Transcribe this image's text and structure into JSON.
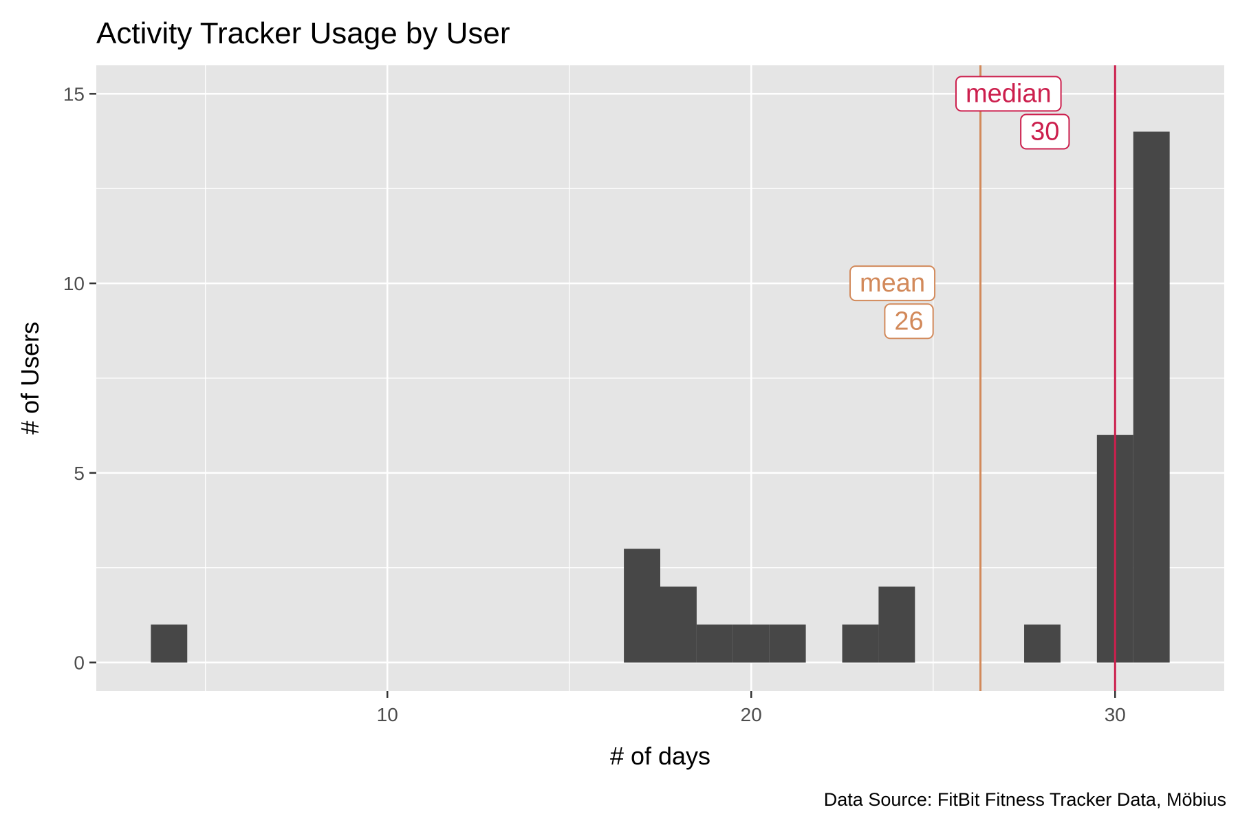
{
  "chart_data": {
    "type": "bar",
    "chart_kind": "histogram",
    "title": "Activity Tracker Usage by User",
    "xlabel": "# of days",
    "ylabel": "# of Users",
    "caption": "Data Source: FitBit Fitness Tracker Data, Möbius",
    "xlim": [
      2,
      33
    ],
    "ylim": [
      -0.75,
      15.75
    ],
    "x_ticks": [
      10,
      20,
      30
    ],
    "x_minor_breaks": [
      5,
      15,
      25
    ],
    "y_ticks": [
      0,
      5,
      10,
      15
    ],
    "y_minor_breaks": [
      2.5,
      7.5,
      12.5
    ],
    "grid": true,
    "bin_width": 1,
    "bins": [
      {
        "x": 4,
        "count": 1
      },
      {
        "x": 17,
        "count": 3
      },
      {
        "x": 18,
        "count": 2
      },
      {
        "x": 19,
        "count": 1
      },
      {
        "x": 20,
        "count": 1
      },
      {
        "x": 21,
        "count": 1
      },
      {
        "x": 23,
        "count": 1
      },
      {
        "x": 24,
        "count": 2
      },
      {
        "x": 28,
        "count": 1
      },
      {
        "x": 30,
        "count": 6
      },
      {
        "x": 31,
        "count": 14
      }
    ],
    "reference_lines": [
      {
        "name": "mean",
        "value": 26,
        "x": 26.3,
        "label": "mean",
        "value_label": "26",
        "color": "#D2895A"
      },
      {
        "name": "median",
        "value": 30,
        "x": 30,
        "label": "median",
        "value_label": "30",
        "color": "#CC1F4D"
      }
    ],
    "colors": {
      "bar": "#474747",
      "panel": "#E5E5E5",
      "grid": "#FFFFFF"
    }
  }
}
